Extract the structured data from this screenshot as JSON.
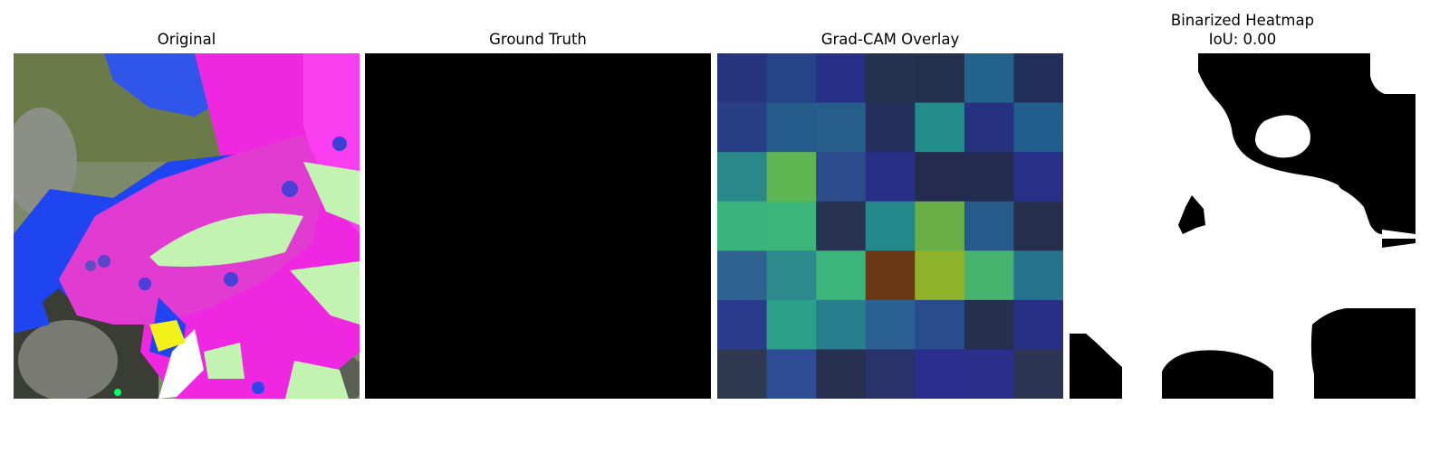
{
  "panels": {
    "original": {
      "title": "Original"
    },
    "ground_truth": {
      "title": "Ground Truth"
    },
    "gradcam": {
      "title": "Grad-CAM Overlay",
      "grid_size": 7,
      "cell_colors": [
        [
          "#27347f",
          "#26438a",
          "#282f86",
          "#24324f",
          "#222f4d",
          "#23628a",
          "#222e5b"
        ],
        [
          "#283e86",
          "#255b8b",
          "#265d8b",
          "#23305c",
          "#218c8a",
          "#263180",
          "#225e8c"
        ],
        [
          "#2a878a",
          "#5fb551",
          "#2c4b8a",
          "#282f87",
          "#242b4e",
          "#232b4f",
          "#283088"
        ],
        [
          "#3ab37c",
          "#3cb57a",
          "#28344f",
          "#25888b",
          "#6aaf46",
          "#265a8b",
          "#252f4c"
        ],
        [
          "#2e6290",
          "#2d8a8c",
          "#3bb579",
          "#6b3816",
          "#8fb22b",
          "#46b46f",
          "#25738d"
        ],
        [
          "#2a3a8c",
          "#2aa088",
          "#277e8d",
          "#2b6192",
          "#294c8b",
          "#252f4e",
          "#283085"
        ],
        [
          "#2f3a51",
          "#2e4d96",
          "#28304f",
          "#2a3369",
          "#2b2e8d",
          "#2c2f8c",
          "#2b3552"
        ]
      ]
    },
    "binarized": {
      "title": "Binarized Heatmap",
      "iou_text": "IoU: 0.00"
    }
  },
  "colors": {
    "magenta": "#f31ee3",
    "leaf_pink": "#e23bd1",
    "blue": "#1f3df2",
    "pale_green": "#c2f3b1",
    "mask_black": "#000000"
  }
}
